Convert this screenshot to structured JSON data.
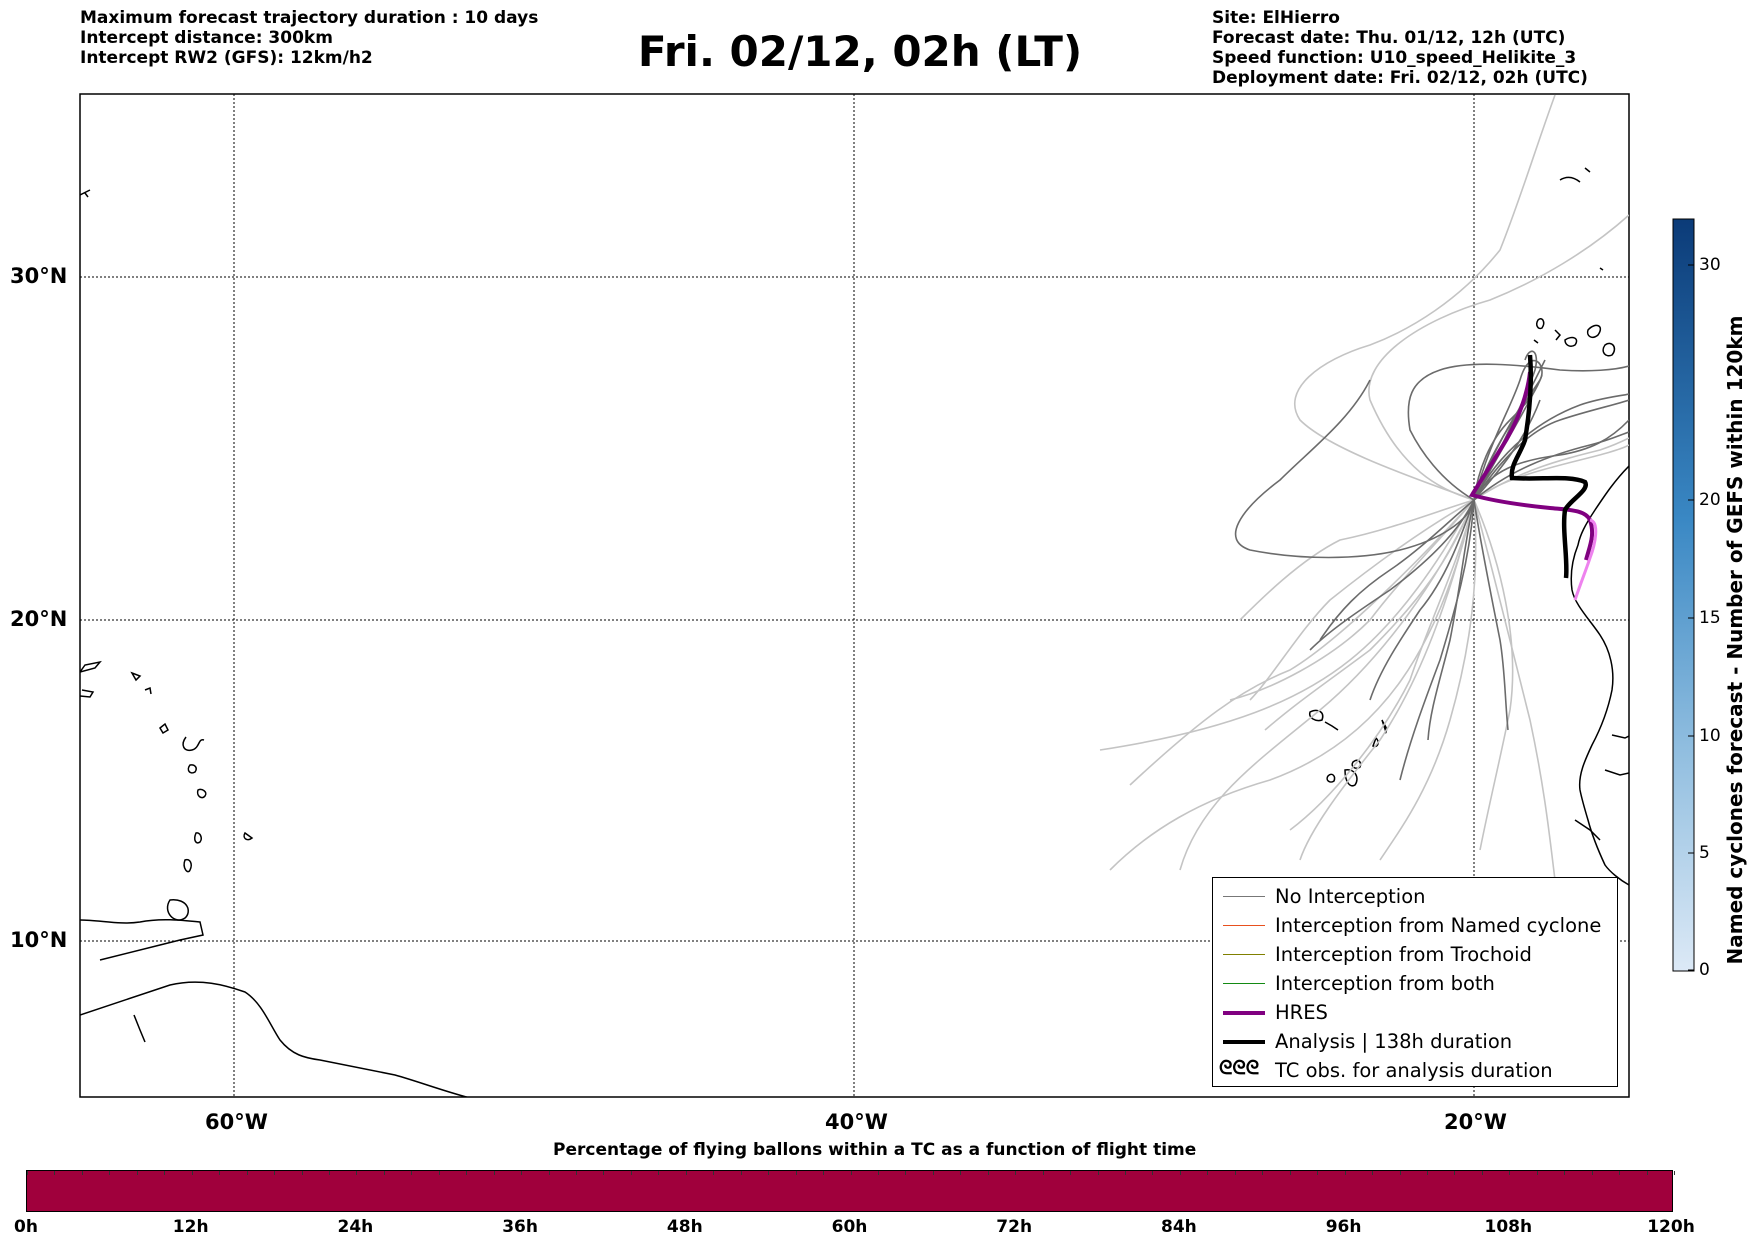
{
  "header": {
    "left": [
      "Maximum forecast trajectory duration : 10 days",
      "Intercept distance: 300km",
      "Intercept RW2 (GFS):  12km/h2"
    ],
    "title": "Fri. 02/12, 02h (LT)",
    "right": [
      "Site: ElHierro",
      "Forecast date: Thu. 01/12, 12h (UTC)",
      "Speed function: U10_speed_Helikite_3",
      "Deployment date: Fri. 02/12, 02h (UTC)"
    ]
  },
  "map": {
    "lon_range": [
      -65,
      -15
    ],
    "lat_range": [
      5,
      34.3
    ],
    "lat_labels": [
      "30°N",
      "20°N",
      "10°N"
    ],
    "lon_labels": [
      "60°W",
      "40°W",
      "20°W"
    ],
    "grid": "dotted"
  },
  "legend": {
    "items": [
      {
        "label": "No Interception",
        "color": "#777777"
      },
      {
        "label": "Interception from Named cyclone",
        "color": "#e8501e"
      },
      {
        "label": "Interception from Trochoid",
        "color": "#808000"
      },
      {
        "label": "Interception from both",
        "color": "#138a13"
      },
      {
        "label": "HRES",
        "color": "#800080"
      },
      {
        "label": "Analysis | 138h duration",
        "color": "#000000"
      },
      {
        "label": "TC obs. for analysis duration",
        "symbol": "ᘓᘓᘓ"
      }
    ]
  },
  "colorbar": {
    "title": "Named cyclones forecast - Number of GEFS within 120km",
    "ticks": [
      "30",
      "20",
      "15",
      "10",
      "5",
      "0"
    ],
    "range": [
      0,
      32
    ]
  },
  "timebar": {
    "title": "Percentage of flying ballons within a TC as a function of flight time",
    "labels": [
      "0h",
      "12h",
      "24h",
      "36h",
      "48h",
      "60h",
      "72h",
      "84h",
      "96h",
      "108h",
      "120h"
    ],
    "color": "#a0003c"
  }
}
